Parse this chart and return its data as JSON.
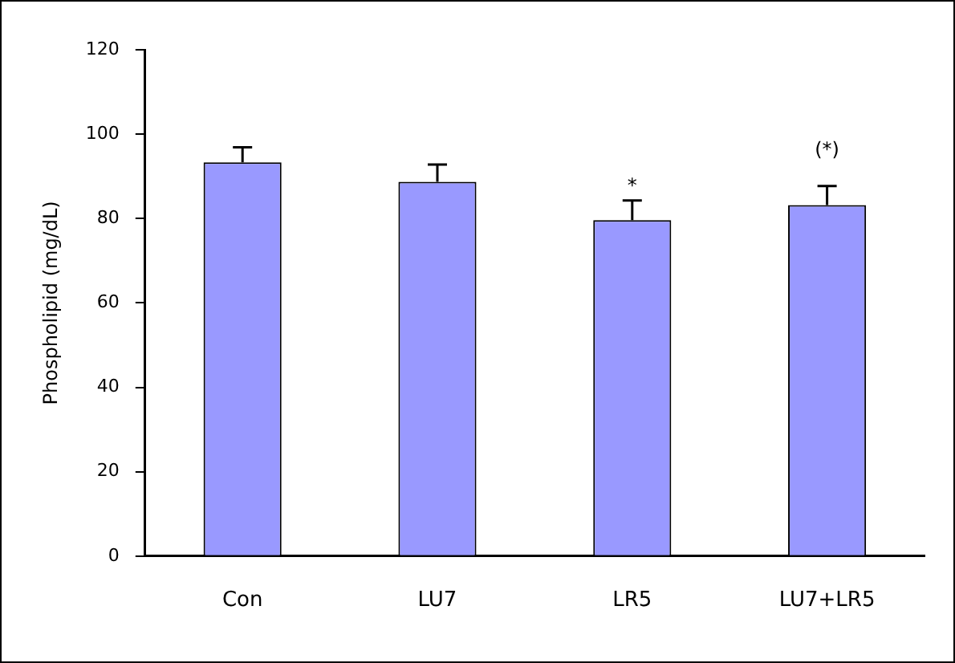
{
  "chart_data": {
    "type": "bar",
    "ylabel": "Phospholipid (mg/dL)",
    "categories": [
      "Con",
      "LU7",
      "LR5",
      "LU7+LR5"
    ],
    "values": [
      93.3,
      88.7,
      79.6,
      83.2
    ],
    "errors": [
      [
        93.3,
        96.9
      ],
      [
        88.7,
        92.8
      ],
      [
        79.6,
        84.3
      ],
      [
        83.2,
        87.7
      ]
    ],
    "color": "#9999ff",
    "ylim": [
      0,
      120
    ],
    "yticks": [
      0,
      20,
      40,
      60,
      80,
      100,
      120
    ],
    "grid": false,
    "legend": false,
    "annotations": [
      "*",
      "(*)"
    ]
  }
}
